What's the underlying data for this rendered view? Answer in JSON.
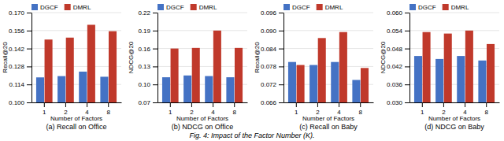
{
  "title": "Fig. 4: Impact of the Factor Number (K).",
  "chart_data": [
    {
      "type": "bar",
      "title": "(a) Recall on Office",
      "x_label": "Number of Factors",
      "y_label": "Recall@20",
      "categories": [
        "1",
        "2",
        "4",
        "8"
      ],
      "series": [
        {
          "name": "DGCF",
          "color": "#4472C4",
          "values": [
            0.1195,
            0.1205,
            0.124,
            0.12
          ]
        },
        {
          "name": "DMRL",
          "color": "#C0392B",
          "values": [
            0.149,
            0.1505,
            0.1605,
            0.1555
          ]
        }
      ],
      "ylim": [
        0.1,
        0.17
      ],
      "yticks": [
        {
          "value": 0.1,
          "label": "0.100"
        },
        0.114,
        0.128,
        0.142,
        0.156,
        {
          "value": 0.17,
          "label": "0.170"
        }
      ],
      "grid": true,
      "legend": "upper left"
    },
    {
      "type": "bar",
      "title": "(b) NDCG on Office",
      "x_label": "Number of Factors",
      "y_label": "NDCG@20",
      "categories": [
        "1",
        "2",
        "4",
        "8"
      ],
      "series": [
        {
          "name": "DGCF",
          "color": "#4472C4",
          "values": [
            0.112,
            0.115,
            0.114,
            0.112
          ]
        },
        {
          "name": "DMRL",
          "color": "#C0392B",
          "values": [
            0.16,
            0.161,
            0.19,
            0.161
          ]
        }
      ],
      "ylim": [
        0.07,
        0.22
      ],
      "yticks": [
        0.07,
        {
          "value": 0.1,
          "label": "0.10"
        },
        0.13,
        {
          "value": 0.16,
          "label": "0.16"
        },
        0.19,
        0.22
      ],
      "grid": true,
      "legend": "upper left"
    },
    {
      "type": "bar",
      "title": "(c) Recall on Baby",
      "x_label": "Number of Factors",
      "y_label": "Recall@20",
      "categories": [
        "1",
        "2",
        "4",
        "8"
      ],
      "series": [
        {
          "name": "DGCF",
          "color": "#4472C4",
          "values": [
            0.0795,
            0.0785,
            0.0795,
            0.0735
          ]
        },
        {
          "name": "DMRL",
          "color": "#C0392B",
          "values": [
            0.0785,
            0.0875,
            0.0895,
            0.0775
          ]
        }
      ],
      "ylim": [
        0.066,
        0.096
      ],
      "yticks": [
        0.066,
        0.072,
        0.078,
        0.084,
        {
          "value": 0.09,
          "label": "0.090"
        },
        0.096
      ],
      "grid": true,
      "legend": "upper left"
    },
    {
      "type": "bar",
      "title": "(d) NDCG on Baby",
      "x_label": "Number of Factors",
      "y_label": "NDCG@20",
      "categories": [
        "1",
        "2",
        "4",
        "8"
      ],
      "series": [
        {
          "name": "DGCF",
          "color": "#4472C4",
          "values": [
            0.0455,
            0.0445,
            0.0455,
            0.044
          ]
        },
        {
          "name": "DMRL",
          "color": "#C0392B",
          "values": [
            0.0535,
            0.053,
            0.054,
            0.0495
          ]
        }
      ],
      "ylim": [
        0.03,
        0.06
      ],
      "yticks": [
        {
          "value": 0.03,
          "label": "0.030"
        },
        0.036,
        0.042,
        0.048,
        0.054,
        {
          "value": 0.06,
          "label": "0.060"
        }
      ],
      "grid": true,
      "legend": "upper left"
    }
  ]
}
